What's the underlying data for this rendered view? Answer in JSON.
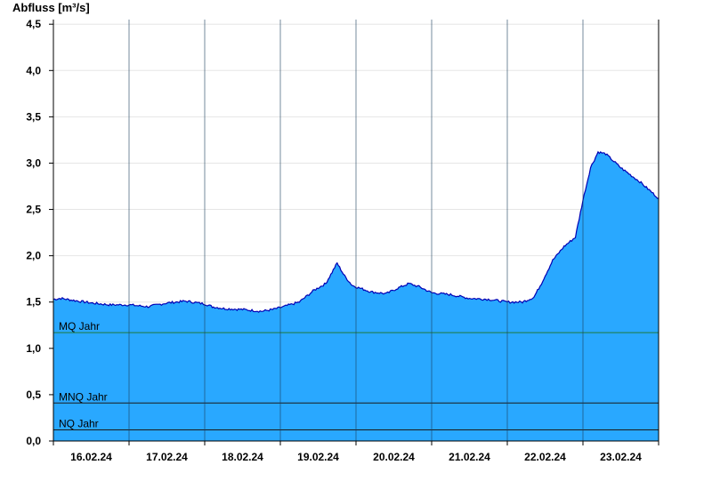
{
  "chart_data": {
    "type": "area",
    "ylabel": "Abfluss [m³/s]",
    "xlabel": "",
    "title": "",
    "ylim": [
      0,
      4.55
    ],
    "yticks": [
      0,
      0.5,
      1.0,
      1.5,
      2.0,
      2.5,
      3.0,
      3.5,
      4.0,
      4.5
    ],
    "ytick_labels": [
      "0,0",
      "0,5",
      "1,0",
      "1,5",
      "2,0",
      "2,5",
      "3,0",
      "3,5",
      "4,0",
      "4,5"
    ],
    "x_unit": "days",
    "xlim": [
      0,
      8
    ],
    "xtick_labels": [
      "16.02.24",
      "17.02.24",
      "18.02.24",
      "19.02.24",
      "20.02.24",
      "21.02.24",
      "22.02.24",
      "23.02.24"
    ],
    "grid": true,
    "fill_color": "#29a8ff",
    "line_color": "#0000b4",
    "reference_lines": [
      {
        "label": "MQ Jahr",
        "value": 1.17,
        "color": "#1f7a3a"
      },
      {
        "label": "MNQ Jahr",
        "value": 0.41,
        "color": "#1a1a1a"
      },
      {
        "label": "NQ Jahr",
        "value": 0.12,
        "color": "#1a1a1a"
      }
    ],
    "series": [
      {
        "x": [
          0.0,
          0.1,
          0.25,
          0.5,
          0.75,
          1.0,
          1.25,
          1.5,
          1.75,
          2.0,
          2.1,
          2.25,
          2.5,
          2.75,
          2.9,
          3.0,
          3.25,
          3.45,
          3.6,
          3.75,
          3.85,
          3.95,
          4.05,
          4.2,
          4.4,
          4.55,
          4.7,
          4.85,
          5.0,
          5.25,
          5.5,
          5.75,
          6.0,
          6.2,
          6.35,
          6.45,
          6.6,
          6.75,
          6.9,
          7.0,
          7.1,
          7.2,
          7.3,
          7.5,
          7.75,
          8.0
        ],
        "y": [
          1.53,
          1.54,
          1.52,
          1.49,
          1.47,
          1.47,
          1.45,
          1.49,
          1.51,
          1.48,
          1.45,
          1.43,
          1.42,
          1.4,
          1.42,
          1.44,
          1.5,
          1.63,
          1.7,
          1.92,
          1.78,
          1.68,
          1.65,
          1.61,
          1.59,
          1.65,
          1.7,
          1.66,
          1.6,
          1.58,
          1.54,
          1.53,
          1.5,
          1.5,
          1.55,
          1.7,
          1.95,
          2.1,
          2.2,
          2.6,
          2.95,
          3.12,
          3.1,
          2.95,
          2.8,
          2.62
        ]
      }
    ]
  }
}
